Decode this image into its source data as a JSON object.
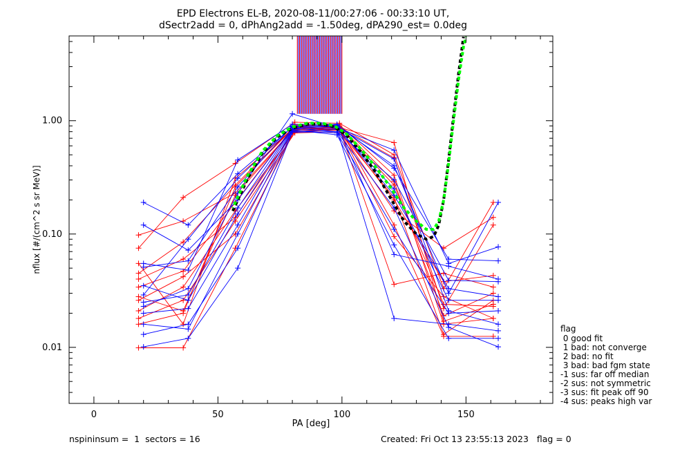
{
  "chart_data": {
    "type": "line",
    "title": "EPD Electrons EL-B, 2020-08-11/00:27:06 - 00:33:10 UT,",
    "subtitle": "dSectr2add = 0, dPhAng2add = -1.50deg, dPA290_est=   0.0deg",
    "xlabel": "PA [deg]",
    "ylabel": "nflux [#/(cm^2 s sr MeV)]",
    "xlim": [
      -10,
      185
    ],
    "ylim": [
      0.0032,
      5.6
    ],
    "yscale": "log",
    "xticks": [
      0,
      50,
      100,
      150
    ],
    "xtick_labels": [
      "0",
      "50",
      "100",
      "150"
    ],
    "yticks": [
      0.01,
      0.1,
      1.0
    ],
    "ytick_labels": [
      "0.01",
      "0.10",
      "1.00"
    ],
    "colors": {
      "red": "#ff0000",
      "blue": "#0000ff",
      "fit_black": "#000000",
      "fit_green": "#00ff00"
    },
    "series": [
      {
        "color": "red",
        "curves": [
          {
            "x": [
              18,
              36,
              57,
              81,
              99,
              121,
              141,
              161
            ],
            "y": [
              0.028,
              0.021,
              0.22,
              0.86,
              0.92,
              0.33,
              0.016,
              0.018
            ]
          },
          {
            "x": [
              18,
              36,
              57,
              81,
              99,
              121,
              141,
              161
            ],
            "y": [
              0.045,
              0.085,
              0.27,
              0.9,
              0.88,
              0.47,
              0.022,
              0.12
            ]
          },
          {
            "x": [
              18,
              36,
              57,
              81,
              99,
              121,
              141,
              161
            ],
            "y": [
              0.018,
              0.026,
              0.13,
              0.78,
              0.8,
              0.21,
              0.013,
              0.026
            ]
          },
          {
            "x": [
              18,
              36,
              57,
              81,
              99,
              121,
              141,
              161
            ],
            "y": [
              0.075,
              0.21,
              0.42,
              0.97,
              0.95,
              0.5,
              0.033,
              0.19
            ]
          },
          {
            "x": [
              18,
              36,
              57,
              81,
              99,
              121,
              141,
              161
            ],
            "y": [
              0.0099,
              0.0099,
              0.075,
              0.83,
              0.86,
              0.12,
              0.0125,
              0.0125
            ]
          },
          {
            "x": [
              18,
              36,
              57,
              81,
              99,
              121,
              141,
              161
            ],
            "y": [
              0.034,
              0.047,
              0.19,
              0.92,
              0.9,
              0.29,
              0.019,
              0.03
            ]
          },
          {
            "x": [
              18,
              36,
              57,
              81,
              99,
              121,
              141,
              161
            ],
            "y": [
              0.021,
              0.034,
              0.16,
              0.8,
              0.83,
              0.095,
              0.028,
              0.018
            ]
          },
          {
            "x": [
              18,
              36,
              57,
              81,
              99,
              121,
              141,
              161
            ],
            "y": [
              0.055,
              0.016,
              0.31,
              0.88,
              0.84,
              0.036,
              0.045,
              0.034
            ]
          },
          {
            "x": [
              18,
              36,
              57,
              81,
              99,
              121,
              141,
              161
            ],
            "y": [
              0.098,
              0.13,
              0.23,
              0.87,
              0.82,
              0.16,
              0.075,
              0.14
            ]
          },
          {
            "x": [
              18,
              36,
              57,
              81,
              99,
              121,
              141,
              161
            ],
            "y": [
              0.016,
              0.02,
              0.26,
              0.89,
              0.87,
              0.64,
              0.017,
              0.024
            ]
          },
          {
            "x": [
              18,
              36,
              57,
              81,
              99,
              121,
              141,
              161
            ],
            "y": [
              0.026,
              0.042,
              0.1,
              0.81,
              0.85,
              0.2,
              0.038,
              0.043
            ]
          },
          {
            "x": [
              18,
              36,
              57,
              81,
              99,
              121,
              141,
              161
            ],
            "y": [
              0.04,
              0.06,
              0.14,
              0.84,
              0.88,
              0.27,
              0.024,
              0.023
            ]
          }
        ]
      },
      {
        "color": "blue",
        "curves": [
          {
            "x": [
              20,
              38,
              58,
              80,
              98,
              121,
              143,
              163
            ],
            "y": [
              0.19,
              0.12,
              0.34,
              0.88,
              0.9,
              0.4,
              0.03,
              0.19
            ]
          },
          {
            "x": [
              20,
              38,
              58,
              80,
              98,
              121,
              143,
              163
            ],
            "y": [
              0.023,
              0.033,
              0.23,
              1.15,
              0.87,
              0.55,
              0.055,
              0.077
            ]
          },
          {
            "x": [
              20,
              38,
              58,
              80,
              98,
              121,
              143,
              163
            ],
            "y": [
              0.0101,
              0.012,
              0.05,
              0.79,
              0.8,
              0.17,
              0.015,
              0.0101
            ]
          },
          {
            "x": [
              20,
              38,
              58,
              80,
              98,
              121,
              143,
              163
            ],
            "y": [
              0.055,
              0.048,
              0.45,
              0.93,
              0.93,
              0.38,
              0.06,
              0.058
            ]
          },
          {
            "x": [
              20,
              38,
              58,
              80,
              98,
              121,
              143,
              163
            ],
            "y": [
              0.016,
              0.0145,
              0.1,
              0.82,
              0.78,
              0.11,
              0.02,
              0.021
            ]
          },
          {
            "x": [
              20,
              38,
              58,
              80,
              98,
              121,
              143,
              163
            ],
            "y": [
              0.035,
              0.026,
              0.15,
              0.84,
              0.86,
              0.25,
              0.026,
              0.026
            ]
          },
          {
            "x": [
              20,
              38,
              58,
              80,
              98,
              121,
              143,
              163
            ],
            "y": [
              0.12,
              0.072,
              0.2,
              0.86,
              0.8,
              0.3,
              0.039,
              0.038
            ]
          },
          {
            "x": [
              20,
              38,
              58,
              80,
              98,
              121,
              143,
              163
            ],
            "y": [
              0.013,
              0.016,
              0.075,
              0.8,
              0.84,
              0.018,
              0.016,
              0.014
            ]
          },
          {
            "x": [
              20,
              38,
              58,
              80,
              98,
              121,
              143,
              163
            ],
            "y": [
              0.029,
              0.09,
              0.31,
              0.89,
              0.88,
              0.46,
              0.021,
              0.016
            ]
          },
          {
            "x": [
              20,
              38,
              58,
              80,
              98,
              121,
              143,
              163
            ],
            "y": [
              0.051,
              0.058,
              0.26,
              0.9,
              0.92,
              0.066,
              0.052,
              0.04
            ]
          },
          {
            "x": [
              20,
              38,
              58,
              80,
              98,
              121,
              143,
              163
            ],
            "y": [
              0.02,
              0.022,
              0.12,
              0.83,
              0.75,
              0.08,
              0.012,
              0.012
            ]
          },
          {
            "x": [
              20,
              38,
              58,
              80,
              98,
              121,
              143,
              163
            ],
            "y": [
              0.025,
              0.029,
              0.17,
              0.86,
              0.89,
              0.22,
              0.033,
              0.028
            ]
          }
        ]
      }
    ],
    "fit_black": {
      "x": [
        56,
        62,
        68,
        74,
        80,
        86,
        92,
        97,
        102,
        108,
        114,
        120,
        125,
        130,
        134,
        137,
        139,
        141,
        143,
        145,
        147,
        149
      ],
      "y": [
        0.16,
        0.31,
        0.52,
        0.72,
        0.86,
        0.93,
        0.93,
        0.88,
        0.74,
        0.52,
        0.34,
        0.2,
        0.13,
        0.1,
        0.09,
        0.095,
        0.12,
        0.2,
        0.45,
        1.1,
        2.6,
        5.5
      ]
    },
    "fit_green": {
      "x": [
        56,
        62,
        68,
        74,
        80,
        86,
        92,
        97,
        102,
        108,
        114,
        120,
        125,
        130,
        134,
        137,
        139,
        141,
        143,
        145,
        147,
        149,
        150
      ],
      "y": [
        0.17,
        0.33,
        0.54,
        0.74,
        0.88,
        0.95,
        0.95,
        0.9,
        0.76,
        0.55,
        0.38,
        0.25,
        0.17,
        0.13,
        0.11,
        0.11,
        0.13,
        0.2,
        0.42,
        1.0,
        2.3,
        4.5,
        5.5
      ]
    },
    "vlines": {
      "x_range": [
        82,
        100
      ],
      "y_from": 1.15,
      "colors": [
        "red",
        "blue"
      ]
    },
    "legend": {
      "placement": "right",
      "title": "flag",
      "items": [
        " 0 good fit",
        " 1 bad: not converge",
        " 2 bad: no fit",
        " 3 bad: bad fgm state",
        "-1 sus: far off median",
        "-2 sus: not symmetric",
        "-3 sus: fit peak off 90",
        "-4 sus: peaks high var"
      ]
    }
  },
  "footer": {
    "left": "nspininsum =  1  sectors = 16",
    "right": "Created: Fri Oct 13 23:55:13 2023   flag = 0"
  }
}
